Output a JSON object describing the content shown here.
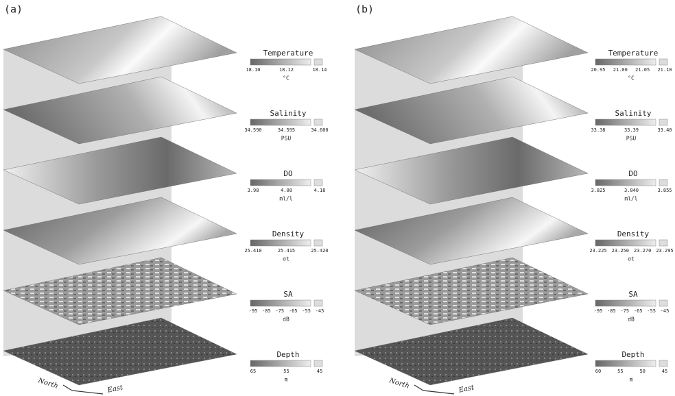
{
  "panels": [
    {
      "label": "(a)",
      "north": "North",
      "east": "East",
      "layers": [
        {
          "title": "Temperature",
          "ticks": [
            "18.10",
            "18.12",
            "18.14"
          ],
          "unit": "°C"
        },
        {
          "title": "Salinity",
          "ticks": [
            "34.590",
            "34.595",
            "34.600"
          ],
          "unit": "PSU"
        },
        {
          "title": "DO",
          "ticks": [
            "3.98",
            "4.08",
            "4.18"
          ],
          "unit": "ml/l"
        },
        {
          "title": "Density",
          "ticks": [
            "25.410",
            "25.415",
            "25.420"
          ],
          "unit": "σt"
        },
        {
          "title": "SA",
          "ticks": [
            "-95",
            "-85",
            "-75",
            "-65",
            "-55",
            "-45"
          ],
          "unit": "dB"
        },
        {
          "title": "Depth",
          "ticks": [
            "65",
            "55",
            "45"
          ],
          "unit": "m"
        }
      ]
    },
    {
      "label": "(b)",
      "north": "North",
      "east": "East",
      "layers": [
        {
          "title": "Temperature",
          "ticks": [
            "20.95",
            "21.00",
            "21.05",
            "21.10"
          ],
          "unit": "°C"
        },
        {
          "title": "Salinity",
          "ticks": [
            "33.38",
            "33.39",
            "33.40"
          ],
          "unit": "PSU"
        },
        {
          "title": "DO",
          "ticks": [
            "3.825",
            "3.840",
            "3.855"
          ],
          "unit": "ml/l"
        },
        {
          "title": "Density",
          "ticks": [
            "23.225",
            "23.250",
            "23.270",
            "23.295"
          ],
          "unit": "σt"
        },
        {
          "title": "SA",
          "ticks": [
            "-95",
            "-85",
            "-75",
            "-65",
            "-55",
            "-45"
          ],
          "unit": "dB"
        },
        {
          "title": "Depth",
          "ticks": [
            "60",
            "55",
            "50",
            "45"
          ],
          "unit": "m"
        }
      ]
    }
  ]
}
